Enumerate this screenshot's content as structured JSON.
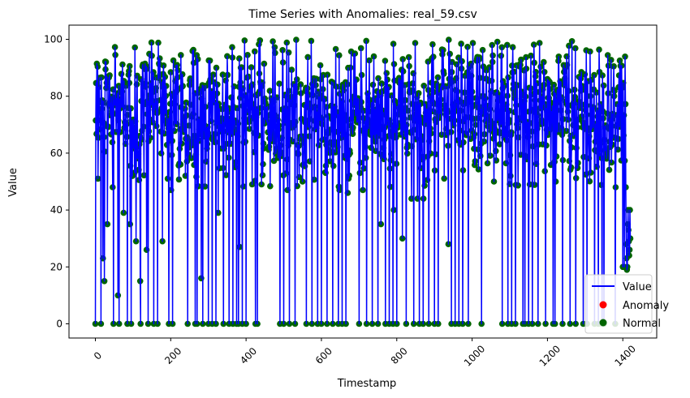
{
  "chart_data": {
    "type": "line",
    "title": "Time Series with Anomalies: real_59.csv",
    "xlabel": "Timestamp",
    "ylabel": "Value",
    "xlim": [
      -70,
      1490
    ],
    "ylim": [
      -5,
      105
    ],
    "x_ticks": [
      0,
      200,
      400,
      600,
      800,
      1000,
      1200,
      1400
    ],
    "y_ticks": [
      0,
      20,
      40,
      60,
      80,
      100
    ],
    "n_points": 1421,
    "series": [
      {
        "name": "Value",
        "kind": "line",
        "color": "#0000ff"
      },
      {
        "name": "Anomaly",
        "kind": "scatter",
        "color": "#ff0000",
        "count": 0
      },
      {
        "name": "Normal",
        "kind": "scatter",
        "color": "#006400"
      }
    ],
    "legend_position": "lower-right",
    "grid": false,
    "x_start": 0,
    "x_end": 1420,
    "y_min": 0,
    "y_max": 100,
    "typical_range": [
      55,
      95
    ],
    "drop_to_zero_timestamps": [
      0,
      15,
      48,
      63,
      85,
      95,
      120,
      140,
      155,
      165,
      195,
      205,
      245,
      265,
      270,
      285,
      300,
      310,
      320,
      340,
      355,
      365,
      375,
      380,
      390,
      400,
      425,
      430,
      490,
      500,
      515,
      530,
      560,
      575,
      590,
      600,
      615,
      630,
      645,
      655,
      665,
      700,
      720,
      735,
      750,
      770,
      780,
      790,
      800,
      815,
      825,
      845,
      860,
      870,
      885,
      900,
      910,
      945,
      955,
      965,
      975,
      990,
      1025,
      1080,
      1095,
      1105,
      1115,
      1135,
      1140,
      1150,
      1160,
      1175,
      1195,
      1215,
      1220,
      1240,
      1260,
      1275,
      1295,
      1305,
      1325,
      1335,
      1345,
      1350,
      1380
    ],
    "low_dip_points": [
      [
        20,
        23
      ],
      [
        24,
        15
      ],
      [
        32,
        35
      ],
      [
        46,
        48
      ],
      [
        60,
        10
      ],
      [
        75,
        39
      ],
      [
        92,
        35
      ],
      [
        108,
        29
      ],
      [
        119,
        15
      ],
      [
        136,
        26
      ],
      [
        178,
        29
      ],
      [
        201,
        47
      ],
      [
        226,
        56
      ],
      [
        281,
        16
      ],
      [
        326,
        39
      ],
      [
        383,
        27
      ],
      [
        416,
        49
      ],
      [
        441,
        49
      ],
      [
        510,
        47
      ],
      [
        550,
        50
      ],
      [
        648,
        47
      ],
      [
        670,
        46
      ],
      [
        710,
        47
      ],
      [
        758,
        35
      ],
      [
        792,
        40
      ],
      [
        815,
        30
      ],
      [
        839,
        44
      ],
      [
        855,
        44
      ],
      [
        871,
        44
      ],
      [
        937,
        28
      ],
      [
        1022,
        59
      ],
      [
        1058,
        50
      ],
      [
        1102,
        52
      ],
      [
        1153,
        49
      ],
      [
        1222,
        50
      ],
      [
        1381,
        48
      ],
      [
        1400,
        20
      ],
      [
        1404,
        20
      ],
      [
        1409,
        23
      ],
      [
        1412,
        24
      ],
      [
        1414,
        26
      ],
      [
        1417,
        40
      ]
    ],
    "end_values": [
      48,
      28,
      23,
      19,
      20,
      35,
      40,
      33,
      29,
      24,
      26,
      40,
      30
    ]
  },
  "legend": {
    "value_label": "Value",
    "anomaly_label": "Anomaly",
    "normal_label": "Normal"
  }
}
